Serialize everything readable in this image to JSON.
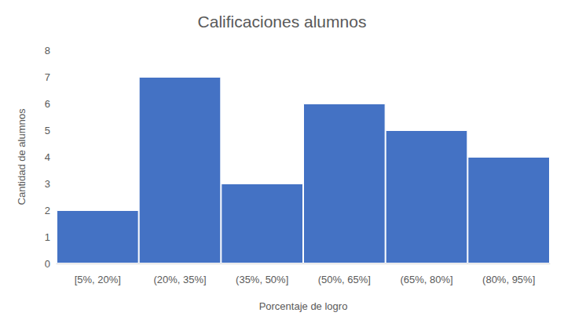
{
  "chart_data": {
    "type": "bar",
    "title": "Calificaciones alumnos",
    "x_label": "Porcentaje de logro",
    "y_label": "Cantidad de alumnos",
    "categories": [
      "[5%, 20%]",
      "(20%, 35%]",
      "(35%, 50%]",
      "(50%, 65%]",
      "(65%, 80%]",
      "(80%, 95%]"
    ],
    "values": [
      2,
      7,
      3,
      6,
      5,
      4
    ],
    "color": "#4472c4",
    "ylim": [
      0,
      8
    ],
    "yticks": [
      0,
      1,
      2,
      3,
      4,
      5,
      6,
      7,
      8
    ],
    "grid": false
  }
}
